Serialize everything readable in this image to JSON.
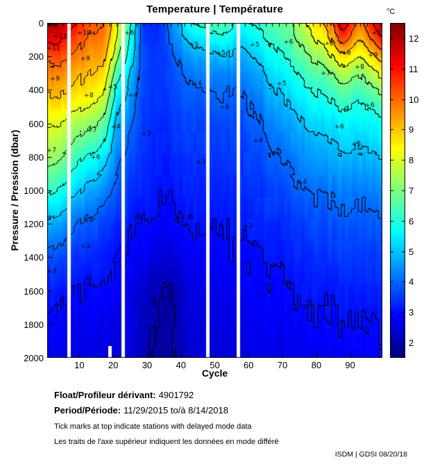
{
  "title": "Temperature | Température",
  "axes": {
    "ylabel": "Pressure / Pression (dbar)",
    "xlabel": "Cycle"
  },
  "colorbar": {
    "unit": "°C",
    "ticks": [
      2,
      3,
      4,
      5,
      6,
      7,
      8,
      9,
      10,
      11,
      12
    ]
  },
  "footer": {
    "float_label": "Float/Profileur dérivant:",
    "float_value": "4901792",
    "period_label": "Period/Période:",
    "period_value": "11/29/2015  to/à  8/14/2018",
    "note_en": "Tick marks at top indicate stations with delayed mode data",
    "note_fr": "Les traits de l'axe supérieur indiquent les données en mode différé",
    "credit": "ISDM | GDSI 08/20/18"
  },
  "chart_data": {
    "type": "heatmap",
    "title": "Temperature | Température",
    "xlabel": "Cycle",
    "ylabel": "Pressure / Pression (dbar)",
    "xlim": [
      1,
      99
    ],
    "ylim": [
      0,
      2000
    ],
    "y_inverted": true,
    "xticks": [
      10,
      20,
      30,
      40,
      50,
      60,
      70,
      80,
      90
    ],
    "yticks": [
      0,
      200,
      400,
      600,
      800,
      1000,
      1200,
      1400,
      1600,
      1800,
      2000
    ],
    "colormap": "jet",
    "color_range": [
      1.5,
      12.5
    ],
    "contour_levels": [
      2,
      3,
      4,
      5,
      6,
      7,
      8,
      9,
      10,
      11,
      12
    ],
    "missing_cycles": [
      7,
      23,
      48,
      57
    ],
    "partial_missing": [
      {
        "cycle": 19,
        "from_pressure": 1930
      }
    ],
    "delayed_mode_tick_cycles": [
      1,
      3,
      5,
      7,
      9,
      11,
      13,
      15,
      17,
      19,
      21,
      23,
      25,
      27,
      29,
      31,
      33,
      35,
      37,
      39,
      41,
      43,
      45,
      47,
      49,
      51,
      53,
      55,
      57,
      59,
      61,
      63,
      65,
      67,
      69,
      71,
      73,
      75,
      77,
      79,
      81,
      83,
      85,
      87,
      89,
      91,
      93,
      95,
      97,
      99
    ],
    "grid": {
      "cycles": [
        1,
        5,
        9,
        13,
        17,
        21,
        25,
        29,
        33,
        38,
        43,
        48,
        53,
        58,
        63,
        68,
        73,
        78,
        83,
        88,
        93,
        99
      ],
      "pressures": [
        0,
        100,
        200,
        300,
        400,
        500,
        600,
        800,
        1000,
        1200,
        1400,
        1600,
        1800,
        2000
      ],
      "values": [
        [
          12.2,
          11.8,
          11.0,
          10.3,
          10.0,
          8.4,
          6.2,
          3.4,
          3.2,
          4.6,
          6.0,
          6.3,
          6.6,
          5.8,
          6.1,
          6.6,
          7.0,
          8.2,
          9.3,
          11.6,
          9.8,
          11.9
        ],
        [
          11.3,
          11.0,
          10.4,
          9.9,
          9.7,
          8.0,
          5.9,
          3.5,
          3.3,
          4.3,
          5.2,
          5.5,
          5.8,
          5.2,
          5.6,
          6.2,
          6.7,
          7.6,
          8.5,
          10.4,
          9.0,
          10.8
        ],
        [
          10.3,
          10.2,
          9.9,
          9.4,
          9.3,
          7.4,
          5.5,
          3.6,
          3.4,
          4.0,
          4.6,
          4.8,
          5.0,
          4.7,
          5.1,
          5.8,
          6.3,
          7.0,
          7.6,
          8.8,
          8.0,
          9.4
        ],
        [
          9.6,
          9.6,
          9.3,
          9.0,
          8.8,
          6.6,
          5.1,
          3.6,
          3.4,
          3.8,
          4.2,
          4.3,
          4.4,
          4.3,
          4.7,
          5.4,
          5.8,
          6.4,
          6.8,
          7.6,
          7.1,
          8.2
        ],
        [
          9.2,
          9.1,
          8.9,
          8.6,
          8.3,
          5.9,
          4.7,
          3.6,
          3.4,
          3.7,
          3.9,
          4.0,
          4.1,
          4.0,
          4.4,
          5.0,
          5.4,
          5.9,
          6.2,
          6.7,
          6.4,
          7.2
        ],
        [
          8.6,
          8.5,
          8.3,
          8.0,
          7.6,
          5.3,
          4.4,
          3.5,
          3.4,
          3.6,
          3.7,
          3.8,
          3.9,
          3.8,
          4.1,
          4.7,
          5.0,
          5.5,
          5.7,
          6.1,
          5.9,
          6.4
        ],
        [
          8.1,
          8.0,
          7.6,
          7.2,
          6.8,
          4.9,
          4.1,
          3.5,
          3.3,
          3.5,
          3.6,
          3.6,
          3.7,
          3.7,
          3.9,
          4.4,
          4.7,
          5.1,
          5.3,
          5.6,
          5.5,
          5.8
        ],
        [
          7.3,
          7.0,
          6.4,
          5.9,
          5.5,
          4.3,
          3.7,
          3.4,
          3.2,
          3.3,
          3.4,
          3.4,
          3.5,
          3.5,
          3.6,
          4.0,
          4.2,
          4.5,
          4.7,
          4.9,
          4.8,
          5.0
        ],
        [
          6.2,
          5.8,
          5.2,
          4.7,
          4.4,
          3.8,
          3.4,
          3.2,
          3.1,
          3.1,
          3.2,
          3.2,
          3.3,
          3.3,
          3.4,
          3.6,
          3.8,
          4.0,
          4.1,
          4.3,
          4.2,
          4.4
        ],
        [
          4.8,
          4.5,
          4.1,
          3.8,
          3.6,
          3.3,
          3.1,
          3.0,
          2.9,
          2.9,
          3.0,
          3.0,
          3.1,
          3.1,
          3.2,
          3.3,
          3.4,
          3.6,
          3.7,
          3.8,
          3.8,
          3.9
        ],
        [
          3.7,
          3.6,
          3.4,
          3.3,
          3.2,
          3.0,
          2.9,
          2.7,
          2.5,
          2.5,
          2.8,
          2.8,
          2.9,
          2.9,
          3.0,
          3.1,
          3.2,
          3.3,
          3.4,
          3.5,
          3.5,
          3.6
        ],
        [
          3.2,
          3.1,
          3.0,
          2.9,
          2.9,
          2.8,
          2.7,
          2.3,
          2.05,
          1.95,
          2.6,
          2.6,
          2.7,
          2.8,
          2.8,
          2.9,
          3.0,
          3.1,
          3.1,
          3.2,
          3.2,
          3.3
        ],
        [
          2.9,
          2.8,
          2.8,
          2.7,
          2.7,
          2.6,
          2.6,
          2.2,
          1.95,
          1.95,
          2.5,
          2.5,
          2.6,
          2.6,
          2.7,
          2.8,
          2.8,
          2.9,
          2.9,
          3.0,
          3.0,
          3.1
        ],
        [
          2.7,
          2.6,
          2.6,
          2.6,
          2.5,
          2.5,
          2.4,
          2.2,
          1.9,
          1.95,
          2.4,
          2.5,
          2.5,
          2.5,
          2.6,
          2.6,
          2.7,
          2.7,
          2.7,
          2.8,
          2.8,
          2.9
        ]
      ]
    },
    "contour_labels": [
      {
        "c": 2,
        "p": 150,
        "v": 11
      },
      {
        "c": 4,
        "p": 80,
        "v": 11
      },
      {
        "c": 3,
        "p": 330,
        "v": 9
      },
      {
        "c": 2,
        "p": 760,
        "v": 7
      },
      {
        "c": 2,
        "p": 1480,
        "v": 3
      },
      {
        "c": 11,
        "p": 60,
        "v": 10
      },
      {
        "c": 12,
        "p": 210,
        "v": 9
      },
      {
        "c": 13,
        "p": 430,
        "v": 8
      },
      {
        "c": 14,
        "p": 640,
        "v": 7
      },
      {
        "c": 15,
        "p": 800,
        "v": 6
      },
      {
        "c": 13,
        "p": 1180,
        "v": 4
      },
      {
        "c": 12,
        "p": 1330,
        "v": 3
      },
      {
        "c": 20,
        "p": 380,
        "v": 5
      },
      {
        "c": 21,
        "p": 620,
        "v": 4
      },
      {
        "c": 25,
        "p": 60,
        "v": 6
      },
      {
        "c": 26,
        "p": 430,
        "v": 4
      },
      {
        "c": 30,
        "p": 660,
        "v": 3
      },
      {
        "c": 36,
        "p": 1640,
        "v": 2
      },
      {
        "c": 44,
        "p": 130,
        "v": 5
      },
      {
        "c": 45,
        "p": 360,
        "v": 4
      },
      {
        "c": 46,
        "p": 830,
        "v": 3
      },
      {
        "c": 52,
        "p": 180,
        "v": 5
      },
      {
        "c": 53,
        "p": 500,
        "v": 4
      },
      {
        "c": 62,
        "p": 130,
        "v": 5
      },
      {
        "c": 63,
        "p": 700,
        "v": 4
      },
      {
        "c": 60,
        "p": 1210,
        "v": 3
      },
      {
        "c": 70,
        "p": 360,
        "v": 5
      },
      {
        "c": 72,
        "p": 110,
        "v": 6
      },
      {
        "c": 76,
        "p": 950,
        "v": 4
      },
      {
        "c": 83,
        "p": 300,
        "v": 7
      },
      {
        "c": 84,
        "p": 120,
        "v": 8
      },
      {
        "c": 89,
        "p": 180,
        "v": 9
      },
      {
        "c": 87,
        "p": 620,
        "v": 6
      },
      {
        "c": 92,
        "p": 720,
        "v": 5
      },
      {
        "c": 93,
        "p": 260,
        "v": 8
      },
      {
        "c": 97,
        "p": 190,
        "v": 9
      },
      {
        "c": 96,
        "p": 490,
        "v": 6
      },
      {
        "c": 98,
        "p": 60,
        "v": 11
      }
    ]
  }
}
